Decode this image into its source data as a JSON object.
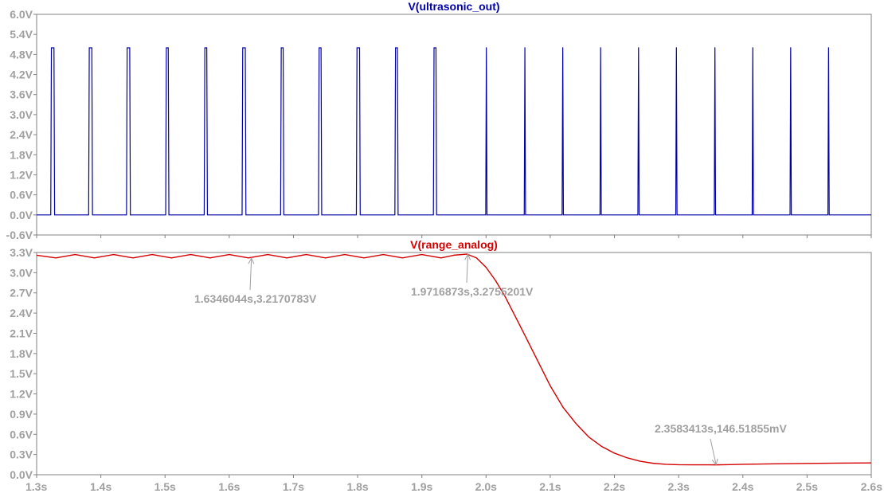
{
  "colors": {
    "trace_top": "#0000a8",
    "trace_bottom": "#d40000",
    "axis_text": "#a0a0a0",
    "frame": "#808080",
    "cursor": "#a0a0a0"
  },
  "chart_data": [
    {
      "type": "line",
      "title": "V(ultrasonic_out)",
      "xlim": [
        1.3,
        2.6
      ],
      "ylim": [
        -0.6,
        6.0
      ],
      "y_ticks": [
        "6.0V",
        "5.4V",
        "4.8V",
        "4.2V",
        "3.6V",
        "3.0V",
        "2.4V",
        "1.8V",
        "1.2V",
        "0.6V",
        "0.0V",
        "-0.6V"
      ],
      "y_tick_values": [
        6.0,
        5.4,
        4.8,
        4.2,
        3.6,
        3.0,
        2.4,
        1.8,
        1.2,
        0.6,
        0.0,
        -0.6
      ],
      "grid": false,
      "series": [
        {
          "color": "#0000a8",
          "pulse_high_v": 5.0,
          "pulse_low_v": 0.0,
          "pulses": [
            {
              "start": 1.322,
              "end": 1.327
            },
            {
              "start": 1.381,
              "end": 1.386
            },
            {
              "start": 1.44,
              "end": 1.445
            },
            {
              "start": 1.501,
              "end": 1.505
            },
            {
              "start": 1.561,
              "end": 1.565
            },
            {
              "start": 1.62,
              "end": 1.625
            },
            {
              "start": 1.68,
              "end": 1.684
            },
            {
              "start": 1.739,
              "end": 1.743
            },
            {
              "start": 1.798,
              "end": 1.803
            },
            {
              "start": 1.858,
              "end": 1.862
            },
            {
              "start": 1.918,
              "end": 1.922
            },
            {
              "start": 1.9995,
              "end": 2.0005
            },
            {
              "start": 2.0595,
              "end": 2.0605
            },
            {
              "start": 2.1185,
              "end": 2.1195
            },
            {
              "start": 2.1775,
              "end": 2.1785
            },
            {
              "start": 2.2365,
              "end": 2.2375
            },
            {
              "start": 2.2955,
              "end": 2.2965
            },
            {
              "start": 2.3555,
              "end": 2.3565
            },
            {
              "start": 2.4145,
              "end": 2.4155
            },
            {
              "start": 2.4735,
              "end": 2.4745
            },
            {
              "start": 2.5325,
              "end": 2.5335
            }
          ]
        }
      ]
    },
    {
      "type": "line",
      "title": "V(range_analog)",
      "xlabel": "",
      "xlim": [
        1.3,
        2.6
      ],
      "ylim": [
        0.0,
        3.3
      ],
      "x_ticks": [
        "1.3s",
        "1.4s",
        "1.5s",
        "1.6s",
        "1.7s",
        "1.8s",
        "1.9s",
        "2.0s",
        "2.1s",
        "2.2s",
        "2.3s",
        "2.4s",
        "2.5s",
        "2.6s"
      ],
      "x_tick_values": [
        1.3,
        1.4,
        1.5,
        1.6,
        1.7,
        1.8,
        1.9,
        2.0,
        2.1,
        2.2,
        2.3,
        2.4,
        2.5,
        2.6
      ],
      "y_ticks": [
        "3.3V",
        "3.0V",
        "2.7V",
        "2.4V",
        "2.1V",
        "1.8V",
        "1.5V",
        "1.2V",
        "0.9V",
        "0.6V",
        "0.3V",
        "0.0V"
      ],
      "y_tick_values": [
        3.3,
        3.0,
        2.7,
        2.4,
        2.1,
        1.8,
        1.5,
        1.2,
        0.9,
        0.6,
        0.3,
        0.0
      ],
      "grid": false,
      "series": [
        {
          "color": "#d40000",
          "x": [
            1.3,
            1.33,
            1.36,
            1.39,
            1.42,
            1.45,
            1.48,
            1.51,
            1.54,
            1.57,
            1.6,
            1.63,
            1.66,
            1.69,
            1.72,
            1.75,
            1.78,
            1.81,
            1.84,
            1.87,
            1.9,
            1.93,
            1.95,
            1.97,
            1.985,
            2.0,
            2.015,
            2.03,
            2.045,
            2.06,
            2.08,
            2.1,
            2.12,
            2.14,
            2.16,
            2.18,
            2.2,
            2.22,
            2.24,
            2.26,
            2.28,
            2.3,
            2.32,
            2.34,
            2.358,
            2.38,
            2.4,
            2.45,
            2.5,
            2.55,
            2.6
          ],
          "y": [
            3.26,
            3.22,
            3.27,
            3.22,
            3.27,
            3.22,
            3.27,
            3.22,
            3.27,
            3.22,
            3.27,
            3.22,
            3.27,
            3.22,
            3.27,
            3.22,
            3.27,
            3.22,
            3.27,
            3.22,
            3.27,
            3.22,
            3.26,
            3.276,
            3.22,
            3.08,
            2.88,
            2.64,
            2.36,
            2.08,
            1.7,
            1.32,
            1.0,
            0.76,
            0.56,
            0.42,
            0.32,
            0.25,
            0.2,
            0.17,
            0.155,
            0.148,
            0.147,
            0.147,
            0.1465,
            0.15,
            0.155,
            0.162,
            0.168,
            0.172,
            0.175
          ]
        }
      ],
      "annotations": [
        {
          "label": "1.6346044s,3.2170783V",
          "x": 1.6346044,
          "y": 3.2170783
        },
        {
          "label": "1.9716873s,3.2755201V",
          "x": 1.9716873,
          "y": 3.2755201
        },
        {
          "label": "2.3583413s,146.51855mV",
          "x": 2.3583413,
          "y": 0.14651855
        }
      ]
    }
  ]
}
